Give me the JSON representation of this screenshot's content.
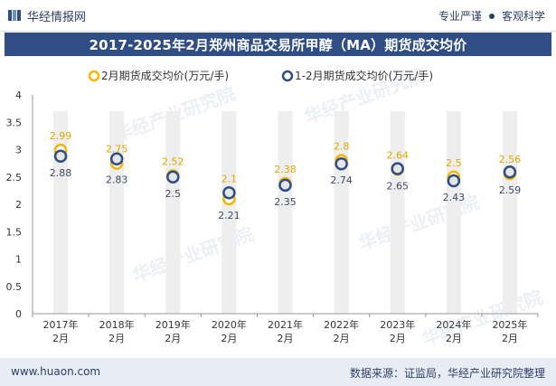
{
  "header": {
    "brand": "华经情报网",
    "tags": [
      "专业严谨",
      "客观科学"
    ]
  },
  "title": "2017-2025年2月郑州商品交易所甲醇（MA）期货成交均价",
  "footer": {
    "url": "www.huaon.com",
    "source": "数据来源：证监局，华经产业研究院整理"
  },
  "watermark": "华经产业研究院",
  "colors": {
    "title_bg": "#2f4e86",
    "series1": "#f5b800",
    "series2": "#2f4e86",
    "label1": "#e0a800",
    "label2": "#3d4b63",
    "column_band": "#eeeeee"
  },
  "chart_data": {
    "type": "line",
    "categories": [
      "2017年\n2月",
      "2018年\n2月",
      "2019年\n2月",
      "2020年\n2月",
      "2021年\n2月",
      "2022年\n2月",
      "2023年\n2月",
      "2024年\n2月",
      "2025年\n2月"
    ],
    "series": [
      {
        "name": "2月期货成交均价(万元/手)",
        "values": [
          2.99,
          2.75,
          2.52,
          2.1,
          2.38,
          2.8,
          2.64,
          2.5,
          2.56
        ]
      },
      {
        "name": "1-2月期货成交均价(万元/手)",
        "values": [
          2.88,
          2.83,
          2.5,
          2.21,
          2.35,
          2.74,
          2.65,
          2.43,
          2.59
        ]
      }
    ],
    "ylim": [
      0,
      4
    ],
    "yticks": [
      0,
      0.5,
      1,
      1.5,
      2,
      2.5,
      3,
      3.5,
      4
    ],
    "legend_position": "top"
  }
}
